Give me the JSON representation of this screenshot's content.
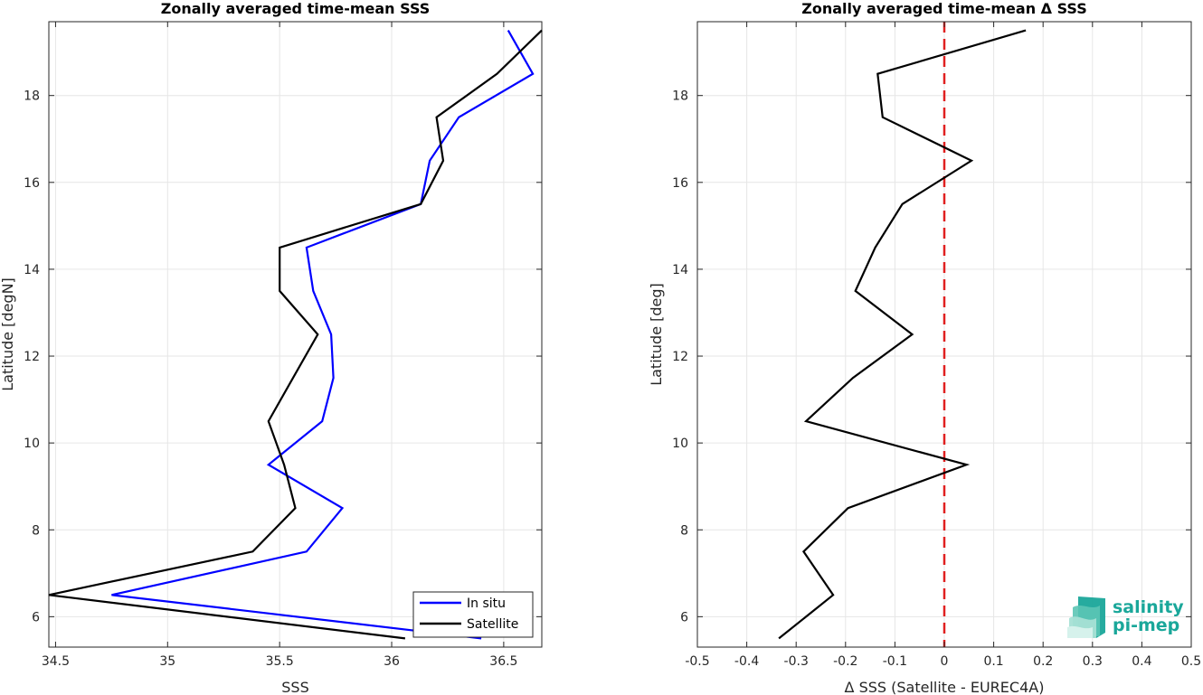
{
  "chart_data": [
    {
      "type": "line",
      "title": "Zonally averaged time-mean SSS",
      "xlabel": "SSS",
      "ylabel": "Latitude [degN]",
      "xlim": [
        34.47,
        36.67
      ],
      "ylim": [
        5.3,
        19.7
      ],
      "xticks": [
        34.5,
        35,
        35.5,
        36,
        36.5
      ],
      "xtick_labels": [
        "34.5",
        "35",
        "35.5",
        "36",
        "36.5"
      ],
      "yticks": [
        6,
        8,
        10,
        12,
        14,
        16,
        18
      ],
      "ytick_labels": [
        "6",
        "8",
        "10",
        "12",
        "14",
        "16",
        "18"
      ],
      "grid": true,
      "legend_position": "bottom-right",
      "series": [
        {
          "name": "In situ",
          "color": "#0000ff",
          "points": [
            [
              36.52,
              19.5
            ],
            [
              36.63,
              18.5
            ],
            [
              36.3,
              17.5
            ],
            [
              36.17,
              16.5
            ],
            [
              36.13,
              15.5
            ],
            [
              35.62,
              14.5
            ],
            [
              35.65,
              13.5
            ],
            [
              35.73,
              12.5
            ],
            [
              35.74,
              11.5
            ],
            [
              35.69,
              10.5
            ],
            [
              35.45,
              9.5
            ],
            [
              35.78,
              8.5
            ],
            [
              35.62,
              7.5
            ],
            [
              34.75,
              6.5
            ],
            [
              36.4,
              5.5
            ]
          ]
        },
        {
          "name": "Satellite",
          "color": "#000000",
          "points": [
            [
              36.67,
              19.5
            ],
            [
              36.47,
              18.5
            ],
            [
              36.2,
              17.5
            ],
            [
              36.23,
              16.5
            ],
            [
              36.13,
              15.5
            ],
            [
              35.5,
              14.5
            ],
            [
              35.5,
              13.5
            ],
            [
              35.67,
              12.5
            ],
            [
              35.56,
              11.5
            ],
            [
              35.45,
              10.5
            ],
            [
              35.52,
              9.5
            ],
            [
              35.57,
              8.5
            ],
            [
              35.38,
              7.5
            ],
            [
              34.47,
              6.5
            ],
            [
              36.06,
              5.5
            ]
          ]
        }
      ]
    },
    {
      "type": "line",
      "title": "Zonally averaged time-mean Δ SSS",
      "xlabel": "Δ SSS (Satellite - EUREC4A)",
      "ylabel": "Latitude [deg]",
      "xlim": [
        -0.5,
        0.5
      ],
      "ylim": [
        5.3,
        19.7
      ],
      "xticks": [
        -0.5,
        -0.4,
        -0.3,
        -0.2,
        -0.1,
        0,
        0.1,
        0.2,
        0.3,
        0.4,
        0.5
      ],
      "xtick_labels": [
        "-0.5",
        "-0.4",
        "-0.3",
        "-0.2",
        "-0.1",
        "0",
        "0.1",
        "0.2",
        "0.3",
        "0.4",
        "0.5"
      ],
      "yticks": [
        6,
        8,
        10,
        12,
        14,
        16,
        18
      ],
      "ytick_labels": [
        "6",
        "8",
        "10",
        "12",
        "14",
        "16",
        "18"
      ],
      "grid": true,
      "reference_line": {
        "x": 0,
        "color": "#e02020",
        "style": "dashed"
      },
      "series": [
        {
          "color": "#000000",
          "points": [
            [
              0.165,
              19.5
            ],
            [
              -0.135,
              18.5
            ],
            [
              -0.125,
              17.5
            ],
            [
              0.055,
              16.5
            ],
            [
              -0.085,
              15.5
            ],
            [
              -0.14,
              14.5
            ],
            [
              -0.18,
              13.5
            ],
            [
              -0.065,
              12.5
            ],
            [
              -0.185,
              11.5
            ],
            [
              -0.28,
              10.5
            ],
            [
              0.045,
              9.5
            ],
            [
              -0.195,
              8.5
            ],
            [
              -0.285,
              7.5
            ],
            [
              -0.225,
              6.5
            ],
            [
              -0.335,
              5.5
            ]
          ]
        }
      ]
    }
  ],
  "logo": {
    "line1": "salinity",
    "line2": "pi-mep",
    "color": "#1aa79a"
  }
}
